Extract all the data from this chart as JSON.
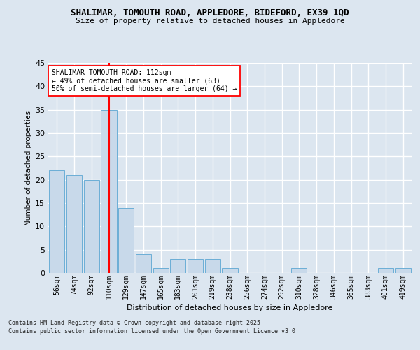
{
  "title_line1": "SHALIMAR, TOMOUTH ROAD, APPLEDORE, BIDEFORD, EX39 1QD",
  "title_line2": "Size of property relative to detached houses in Appledore",
  "xlabel": "Distribution of detached houses by size in Appledore",
  "ylabel": "Number of detached properties",
  "categories": [
    "56sqm",
    "74sqm",
    "92sqm",
    "110sqm",
    "129sqm",
    "147sqm",
    "165sqm",
    "183sqm",
    "201sqm",
    "219sqm",
    "238sqm",
    "256sqm",
    "274sqm",
    "292sqm",
    "310sqm",
    "328sqm",
    "346sqm",
    "365sqm",
    "383sqm",
    "401sqm",
    "419sqm"
  ],
  "values": [
    22,
    21,
    20,
    35,
    14,
    4,
    1,
    3,
    3,
    3,
    1,
    0,
    0,
    0,
    1,
    0,
    0,
    0,
    0,
    1,
    1
  ],
  "bar_color": "#c8d9ea",
  "bar_edge_color": "#6baed6",
  "red_line_index": 3,
  "annotation_text": "SHALIMAR TOMOUTH ROAD: 112sqm\n← 49% of detached houses are smaller (63)\n50% of semi-detached houses are larger (64) →",
  "annotation_box_color": "white",
  "annotation_box_edge": "red",
  "background_color": "#dce6f0",
  "ylim": [
    0,
    45
  ],
  "yticks": [
    0,
    5,
    10,
    15,
    20,
    25,
    30,
    35,
    40,
    45
  ],
  "footer_line1": "Contains HM Land Registry data © Crown copyright and database right 2025.",
  "footer_line2": "Contains public sector information licensed under the Open Government Licence v3.0."
}
